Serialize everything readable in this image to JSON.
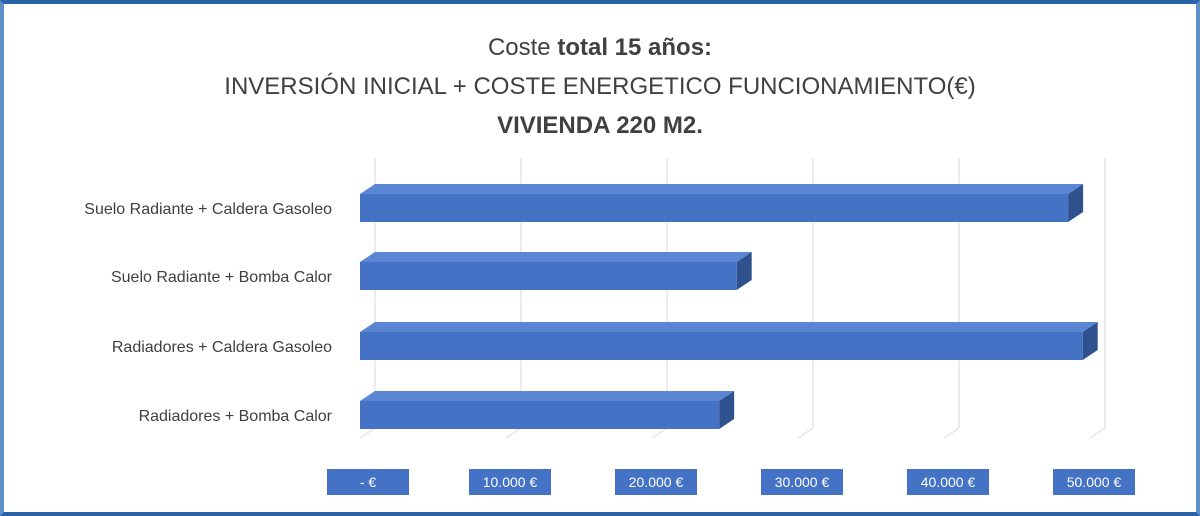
{
  "title": {
    "line1_prefix": "Coste ",
    "line1_bold": "total 15 años:",
    "line2": "INVERSIÓN INICIAL + COSTE ENERGETICO FUNCIONAMIENTO(€)",
    "line3": "VIVIENDA 220 M2."
  },
  "colors": {
    "bar_front": "#4472c4",
    "bar_top": "#5b86d3",
    "bar_side": "#2f528f",
    "tick_bg": "#4472c4",
    "grid": "#d9d9d9",
    "frame": "#2a63a8"
  },
  "chart_data": {
    "type": "bar",
    "orientation": "horizontal",
    "style": "3d",
    "title": "Coste total 15 años: INVERSIÓN INICIAL + COSTE ENERGETICO FUNCIONAMIENTO(€) VIVIENDA 220 M2.",
    "categories": [
      "Suelo Radiante + Caldera Gasoleo",
      "Suelo Radiante + Bomba Calor",
      "Radiadores + Caldera Gasoleo",
      "Radiadores + Bomba Calor"
    ],
    "values": [
      48500,
      25800,
      49500,
      24600
    ],
    "xlim": [
      0,
      50000
    ],
    "tick_values": [
      0,
      10000,
      20000,
      30000,
      40000,
      50000
    ],
    "tick_labels": [
      "-   €",
      "10.000 €",
      "20.000 €",
      "30.000 €",
      "40.000 €",
      "50.000 €"
    ],
    "grid": true,
    "legend": "none"
  }
}
